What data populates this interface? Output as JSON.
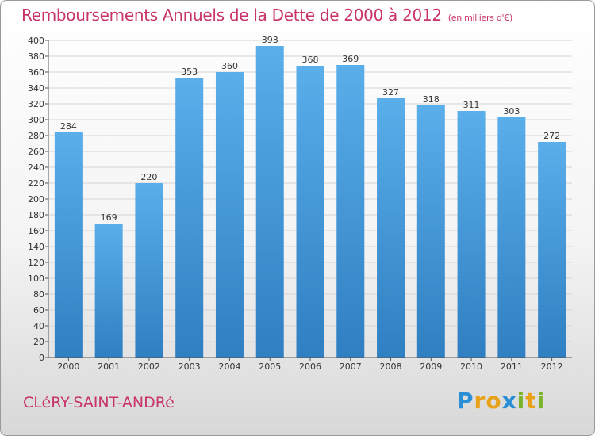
{
  "header": {
    "title": "Remboursements Annuels de la Dette de 2000 à 2012",
    "subtitle": "(en milliers d'€)"
  },
  "footer": {
    "town": "CLéRY-SAINT-ANDRé",
    "logo_letters": [
      "P",
      "r",
      "o",
      "x",
      "i",
      "t",
      "i"
    ]
  },
  "colors": {
    "title": "#c8336b",
    "bar_light": "#5aaeea",
    "bar_dark": "#2f7fc2"
  },
  "chart_data": {
    "type": "bar",
    "title": "Remboursements Annuels de la Dette de 2000 à 2012",
    "xlabel": "",
    "ylabel": "",
    "categories": [
      "2000",
      "2001",
      "2002",
      "2003",
      "2004",
      "2005",
      "2006",
      "2007",
      "2008",
      "2009",
      "2010",
      "2011",
      "2012"
    ],
    "values": [
      284,
      169,
      220,
      353,
      360,
      393,
      368,
      369,
      327,
      318,
      311,
      303,
      272
    ],
    "ylim": [
      0,
      400
    ],
    "ytick_step": 20,
    "grid": true,
    "legend": "none"
  }
}
